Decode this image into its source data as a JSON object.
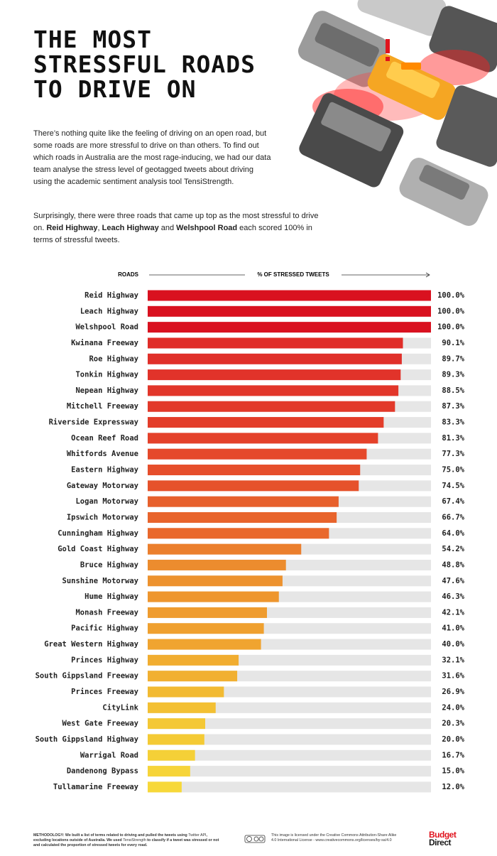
{
  "header": {
    "title_lines": [
      "THE MOST",
      "STRESSFUL ROADS",
      "TO DRIVE ON"
    ]
  },
  "intro": {
    "paragraph_1": "There’s nothing quite like the feeling of driving on an open road, but some roads are more stressful to drive on than others. To find out which roads in Australia are the most rage-inducing, we had our data team analyse the stress level of geotagged tweets about driving using the academic sentiment analysis tool TensiStrength.",
    "paragraph_2": [
      "Surprisingly, there were three roads that came up top as the most stressful to drive on. ",
      "Reid Highway",
      ", ",
      "Leach Highway",
      " and ",
      "Welshpool Road",
      " each scored 100% in terms of stressful tweets."
    ]
  },
  "chart_data": {
    "type": "bar",
    "orientation": "horizontal",
    "category_header": "ROADS",
    "value_header": "% OF STRESSED TWEETS",
    "categories": [
      "Reid Highway",
      "Leach Highway",
      "Welshpool Road",
      "Kwinana Freeway",
      "Roe Highway",
      "Tonkin Highway",
      "Nepean Highway",
      "Mitchell Freeway",
      "Riverside Expressway",
      "Ocean Reef Road",
      "Whitfords Avenue",
      "Eastern Highway",
      "Gateway Motorway",
      "Logan Motorway",
      "Ipswich Motorway",
      "Cunningham Highway",
      "Gold Coast Highway",
      "Bruce Highway",
      "Sunshine Motorway",
      "Hume Highway",
      "Monash Freeway",
      "Pacific Highway",
      "Great Western Highway",
      "Princes Highway",
      "South Gippsland Freeway",
      "Princes Freeway",
      "CityLink",
      "West Gate Freeway",
      "South Gippsland Highway",
      "Warrigal Road",
      "Dandenong Bypass",
      "Tullamarine Freeway"
    ],
    "values": [
      100,
      100,
      100,
      90.1,
      89.7,
      89.3,
      88.5,
      87.3,
      83.3,
      81.3,
      77.3,
      75,
      74.5,
      67.4,
      66.7,
      64,
      54.2,
      48.8,
      47.6,
      46.3,
      42.1,
      41,
      40,
      32.1,
      31.6,
      26.9,
      24,
      20.3,
      20,
      16.7,
      15,
      12
    ],
    "value_labels": [
      "100.0%",
      "100.0%",
      "100.0%",
      "90.1%",
      "89.7%",
      "89.3%",
      "88.5%",
      "87.3%",
      "83.3%",
      "81.3%",
      "77.3%",
      "75.0%",
      "74.5%",
      "67.4%",
      "66.7%",
      "64.0%",
      "54.2%",
      "48.8%",
      "47.6%",
      "46.3%",
      "42.1%",
      "41.0%",
      "40.0%",
      "32.1%",
      "31.6%",
      "26.9%",
      "24.0%",
      "20.3%",
      "20.0%",
      "16.7%",
      "15.0%",
      "12.0%"
    ],
    "colors": [
      "#d9111f",
      "#d9111f",
      "#d9111f",
      "#e02d28",
      "#e0302a",
      "#e1332a",
      "#e2362a",
      "#e2392a",
      "#e33d2a",
      "#e4412a",
      "#e5492b",
      "#e64e2b",
      "#e6522b",
      "#e7602c",
      "#e8642c",
      "#e9682c",
      "#eb7f2d",
      "#ec8c2e",
      "#ed922e",
      "#ee962e",
      "#ef9c2f",
      "#efa02f",
      "#f0a430",
      "#f1ad30",
      "#f1b031",
      "#f2ba32",
      "#f3c033",
      "#f4c835",
      "#f4ca35",
      "#f5d037",
      "#f6d439",
      "#f7d83a"
    ],
    "track_color": "#e6e6e6",
    "xlim": [
      0,
      100
    ]
  },
  "footer": {
    "methodology": [
      "METHODOLOGY:",
      " We built a list of terms related to driving and pulled the tweets using ",
      "Twitter API",
      ", excluding locations outside of Australia. We used ",
      "TensiStrength",
      " to classify if a tweet was stressed or not and calculated the proportion of stressed tweets for every road."
    ],
    "license": "This image is licensed under the Creative Commons Attribution-Share Alike 4.0 International License - www.creativecommons.org/licenses/by-sa/4.0",
    "logo": [
      "Budget",
      "Direct"
    ]
  }
}
